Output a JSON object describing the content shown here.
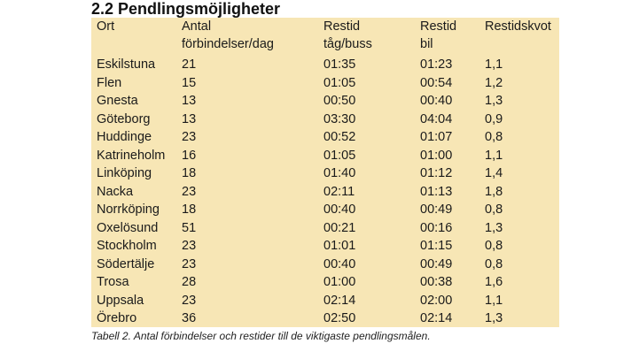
{
  "heading": "2.2 Pendlingsmöjligheter",
  "table": {
    "headers": [
      {
        "line1": "Ort",
        "line2": ""
      },
      {
        "line1": "Antal",
        "line2": "förbindelser/dag"
      },
      {
        "line1": "Restid",
        "line2": "tåg/buss"
      },
      {
        "line1": "Restid",
        "line2": "bil"
      },
      {
        "line1": "Restidskvot",
        "line2": ""
      }
    ],
    "rows": [
      [
        "Eskilstuna",
        "21",
        "01:35",
        "01:23",
        "1,1"
      ],
      [
        "Flen",
        "15",
        "01:05",
        "00:54",
        "1,2"
      ],
      [
        "Gnesta",
        "13",
        "00:50",
        "00:40",
        "1,3"
      ],
      [
        "Göteborg",
        "13",
        "03:30",
        "04:04",
        "0,9"
      ],
      [
        "Huddinge",
        "23",
        "00:52",
        "01:07",
        "0,8"
      ],
      [
        "Katrineholm",
        "16",
        "01:05",
        "01:00",
        "1,1"
      ],
      [
        "Linköping",
        "18",
        "01:40",
        "01:12",
        "1,4"
      ],
      [
        "Nacka",
        "23",
        "02:11",
        "01:13",
        "1,8"
      ],
      [
        "Norrköping",
        "18",
        "00:40",
        "00:49",
        "0,8"
      ],
      [
        "Oxelösund",
        "51",
        "00:21",
        "00:16",
        "1,3"
      ],
      [
        "Stockholm",
        "23",
        "01:01",
        "01:15",
        "0,8"
      ],
      [
        "Södertälje",
        "23",
        "00:40",
        "00:49",
        "0,8"
      ],
      [
        "Trosa",
        "28",
        "01:00",
        "00:38",
        "1,6"
      ],
      [
        "Uppsala",
        "23",
        "02:14",
        "02:00",
        "1,1"
      ],
      [
        "Örebro",
        "36",
        "02:50",
        "02:14",
        "1,3"
      ]
    ]
  },
  "caption": "Tabell 2. Antal förbindelser och restider till de viktigaste pendlingsmålen."
}
